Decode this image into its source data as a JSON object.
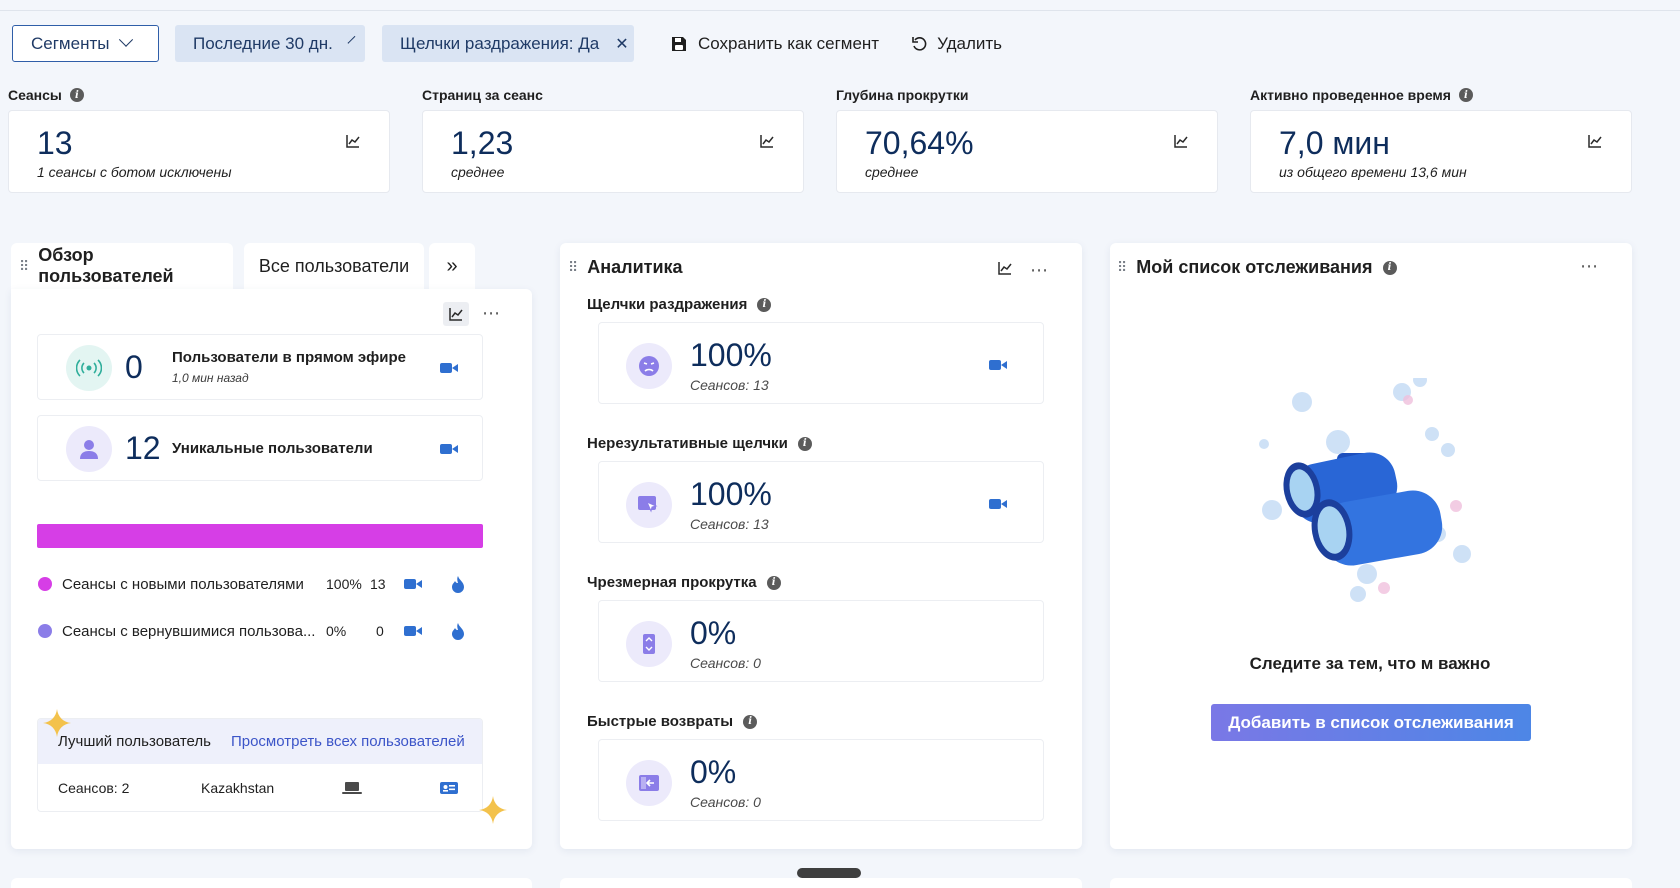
{
  "filters": {
    "segments_label": "Сегменты",
    "date_range": "Последние 30 дн.",
    "rage_filter": "Щелчки раздражения: Да",
    "save_segment": "Сохранить как сегмент",
    "delete": "Удалить"
  },
  "kpis": [
    {
      "label": "Сеансы",
      "value": "13",
      "sub": "1 сеансы с ботом исключены"
    },
    {
      "label": "Страниц за сеанс",
      "value": "1,23",
      "sub": "среднее"
    },
    {
      "label": "Глубина прокрутки",
      "value": "70,64%",
      "sub": "среднее"
    },
    {
      "label": "Активно проведенное время",
      "value": "7,0 мин",
      "sub": "из общего времени 13,6 мин"
    }
  ],
  "users_overview": {
    "tab_active": "Обзор пользователей",
    "tab_other": "Все пользователи",
    "live": {
      "value": "0",
      "title": "Пользователи в прямом эфире",
      "sub": "1,0 мин назад"
    },
    "unique": {
      "value": "12",
      "title": "Уникальные пользователи"
    },
    "new_share": 1.0,
    "legend": [
      {
        "label": "Сеансы с новыми пользователями",
        "pct": "100%",
        "count": "13",
        "color": "#d63ee6"
      },
      {
        "label": "Сеансы с вернувшимися пользова...",
        "pct": "0%",
        "count": "0",
        "color": "#8b7de8"
      }
    ],
    "best_user": {
      "title": "Лучший пользователь",
      "link": "Просмотреть всех пользователей",
      "sessions": "Сеансов: 2",
      "country": "Kazakhstan"
    }
  },
  "analytics": {
    "title": "Аналитика",
    "items": [
      {
        "label": "Щелчки раздражения",
        "value": "100%",
        "sub": "Сеансов: 13",
        "icon": "angry-face-icon"
      },
      {
        "label": "Нерезультативные щелчки",
        "value": "100%",
        "sub": "Сеансов: 13",
        "icon": "dead-click-icon"
      },
      {
        "label": "Чрезмерная прокрутка",
        "value": "0%",
        "sub": "Сеансов: 0",
        "icon": "scroll-icon"
      },
      {
        "label": "Быстрые возвраты",
        "value": "0%",
        "sub": "Сеансов: 0",
        "icon": "quick-back-icon"
      }
    ]
  },
  "watchlist": {
    "title": "Мой список отслеживания",
    "empty_text": "Следите за тем, что м важно",
    "button": "Добавить в список отслеживания"
  }
}
